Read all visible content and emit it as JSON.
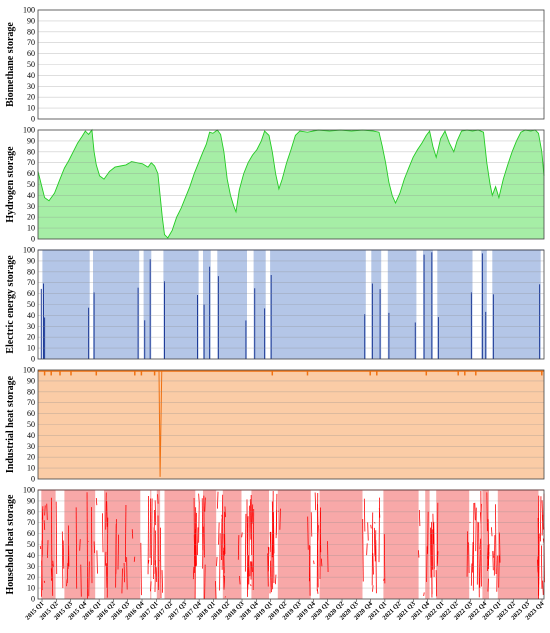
{
  "chart_data": {
    "type": "area",
    "x_labels": [
      "2015 Q1",
      "2015 Q2",
      "2015 Q3",
      "2015 Q4",
      "2016 Q1",
      "2016 Q2",
      "2016 Q3",
      "2016 Q4",
      "2017 Q1",
      "2017 Q2",
      "2017 Q3",
      "2017 Q4",
      "2018 Q1",
      "2018 Q2",
      "2018 Q3",
      "2018 Q4",
      "2019 Q1",
      "2019 Q2",
      "2019 Q3",
      "2019 Q4",
      "2020 Q1",
      "2020 Q2",
      "2020 Q3",
      "2020 Q4",
      "2021 Q1",
      "2021 Q2",
      "2021 Q3",
      "2021 Q4",
      "2022 Q1",
      "2022 Q2",
      "2022 Q3",
      "2022 Q4",
      "2023 Q1",
      "2023 Q2",
      "2023 Q3",
      "2023 Q4"
    ],
    "yticks": [
      0,
      10,
      20,
      30,
      40,
      50,
      60,
      70,
      80,
      90,
      100
    ],
    "ylim": [
      0,
      100
    ],
    "panels": [
      {
        "ylabel": "Biomethane storage",
        "fill": "#ffffff",
        "line": "#4caf50",
        "series": []
      },
      {
        "ylabel": "Hydrogen storage",
        "fill": "#a6eea6",
        "line": "#22cc22",
        "series": [
          [
            0,
            62
          ],
          [
            0.3,
            50
          ],
          [
            0.6,
            38
          ],
          [
            1.0,
            35
          ],
          [
            1.5,
            42
          ],
          [
            2.0,
            55
          ],
          [
            2.4,
            65
          ],
          [
            2.8,
            72
          ],
          [
            3.2,
            80
          ],
          [
            3.6,
            88
          ],
          [
            4.0,
            94
          ],
          [
            4.3,
            99
          ],
          [
            4.6,
            96
          ],
          [
            4.9,
            100
          ],
          [
            5.1,
            80
          ],
          [
            5.3,
            68
          ],
          [
            5.6,
            58
          ],
          [
            6.0,
            55
          ],
          [
            6.5,
            62
          ],
          [
            7.0,
            66
          ],
          [
            7.5,
            67
          ],
          [
            8.0,
            68
          ],
          [
            8.5,
            71
          ],
          [
            9.0,
            70
          ],
          [
            9.5,
            69
          ],
          [
            10.0,
            66
          ],
          [
            10.3,
            70
          ],
          [
            10.6,
            67
          ],
          [
            10.9,
            60
          ],
          [
            11.1,
            40
          ],
          [
            11.3,
            20
          ],
          [
            11.5,
            4
          ],
          [
            11.8,
            1
          ],
          [
            12.2,
            8
          ],
          [
            12.6,
            20
          ],
          [
            13.0,
            28
          ],
          [
            13.4,
            38
          ],
          [
            13.8,
            48
          ],
          [
            14.2,
            60
          ],
          [
            14.6,
            70
          ],
          [
            15.0,
            80
          ],
          [
            15.3,
            87
          ],
          [
            15.6,
            98
          ],
          [
            15.9,
            97
          ],
          [
            16.3,
            100
          ],
          [
            16.6,
            96
          ],
          [
            16.9,
            80
          ],
          [
            17.2,
            55
          ],
          [
            17.5,
            40
          ],
          [
            17.8,
            30
          ],
          [
            18.0,
            25
          ],
          [
            18.3,
            45
          ],
          [
            18.7,
            60
          ],
          [
            19.1,
            70
          ],
          [
            19.5,
            77
          ],
          [
            19.9,
            82
          ],
          [
            20.3,
            90
          ],
          [
            20.6,
            99
          ],
          [
            21.0,
            95
          ],
          [
            21.3,
            80
          ],
          [
            21.6,
            60
          ],
          [
            21.9,
            46
          ],
          [
            22.2,
            55
          ],
          [
            22.6,
            70
          ],
          [
            23.0,
            82
          ],
          [
            23.4,
            95
          ],
          [
            23.8,
            99
          ],
          [
            24.5,
            98
          ],
          [
            25.5,
            100
          ],
          [
            26.5,
            99
          ],
          [
            27.5,
            100
          ],
          [
            28.5,
            99
          ],
          [
            29.5,
            100
          ],
          [
            30.5,
            99
          ],
          [
            31.0,
            98
          ],
          [
            31.3,
            85
          ],
          [
            31.6,
            70
          ],
          [
            31.9,
            52
          ],
          [
            32.2,
            40
          ],
          [
            32.5,
            33
          ],
          [
            32.9,
            42
          ],
          [
            33.3,
            55
          ],
          [
            33.7,
            65
          ],
          [
            34.1,
            75
          ],
          [
            34.5,
            82
          ],
          [
            34.9,
            88
          ],
          [
            35.3,
            95
          ],
          [
            35.6,
            99
          ],
          [
            35.9,
            85
          ],
          [
            36.2,
            75
          ],
          [
            36.6,
            92
          ],
          [
            37.0,
            99
          ],
          [
            37.4,
            88
          ],
          [
            37.8,
            80
          ],
          [
            38.1,
            90
          ],
          [
            38.5,
            99
          ],
          [
            39.0,
            100
          ],
          [
            39.5,
            99
          ],
          [
            40.0,
            100
          ],
          [
            40.5,
            98
          ],
          [
            40.8,
            70
          ],
          [
            41.1,
            50
          ],
          [
            41.3,
            40
          ],
          [
            41.6,
            48
          ],
          [
            41.9,
            38
          ],
          [
            42.3,
            55
          ],
          [
            42.7,
            68
          ],
          [
            43.1,
            80
          ],
          [
            43.5,
            90
          ],
          [
            43.9,
            98
          ],
          [
            44.3,
            100
          ],
          [
            44.8,
            99
          ],
          [
            45.2,
            100
          ],
          [
            45.5,
            97
          ],
          [
            45.8,
            80
          ],
          [
            46.0,
            58
          ]
        ]
      },
      {
        "ylabel": "Electric energy storage",
        "fill": "#b4c6e7",
        "line": "#1f3c99",
        "series": []
      },
      {
        "ylabel": "Industrial heat storage",
        "fill": "#fbcca6",
        "line": "#f07010",
        "series": []
      },
      {
        "ylabel": "Household heat storage",
        "fill": "#f8a8a8",
        "line": "#ff0000",
        "series": []
      }
    ]
  }
}
